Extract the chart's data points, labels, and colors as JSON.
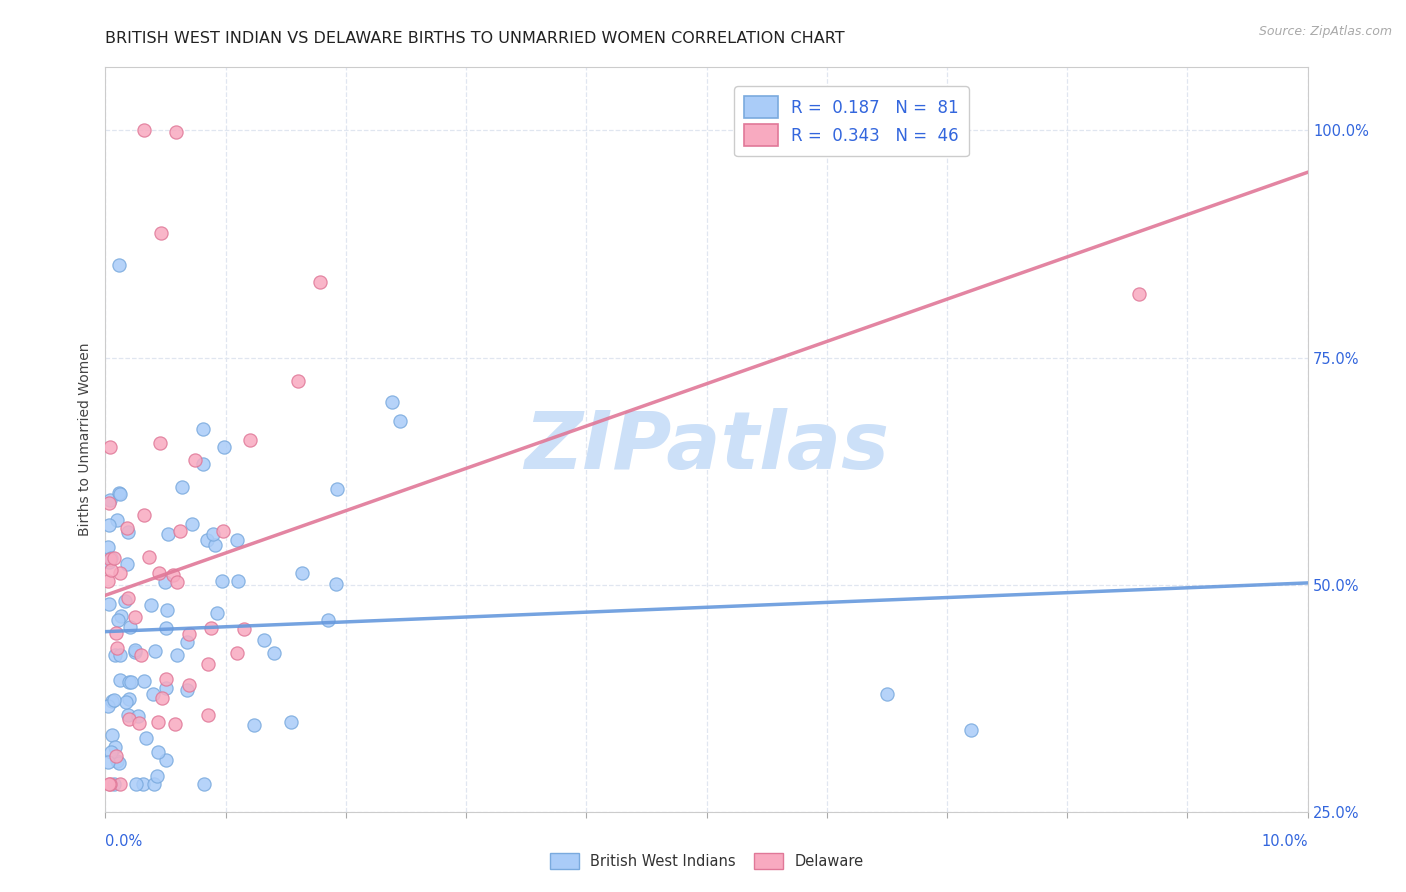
{
  "title": "BRITISH WEST INDIAN VS DELAWARE BIRTHS TO UNMARRIED WOMEN CORRELATION CHART",
  "source": "Source: ZipAtlas.com",
  "ylabel": "Births to Unmarried Women",
  "xmin": 0.0,
  "xmax": 10.0,
  "ymin": 28.0,
  "ymax": 107.0,
  "yticks_right": [
    25.0,
    50.0,
    75.0,
    100.0
  ],
  "ytick_labels_right": [
    "25.0%",
    "50.0%",
    "75.0%",
    "100.0%"
  ],
  "blue_R": 0.187,
  "blue_N": 81,
  "pink_R": 0.343,
  "pink_N": 46,
  "blue_color": "#aaccf8",
  "pink_color": "#f8aac0",
  "blue_edge": "#7aaade",
  "pink_edge": "#e07898",
  "blue_trend_color": "#6699dd",
  "pink_trend_color": "#e07898",
  "blue_label": "British West Indians",
  "pink_label": "Delaware",
  "legend_R_color": "#3366dd",
  "legend_N_color": "#222222",
  "title_fontsize": 11.5,
  "watermark_text": "ZIPatlas",
  "watermark_color": "#cce0f8",
  "background_color": "#ffffff",
  "grid_color": "#e0e6f0",
  "tick_label_color": "#3366dd"
}
